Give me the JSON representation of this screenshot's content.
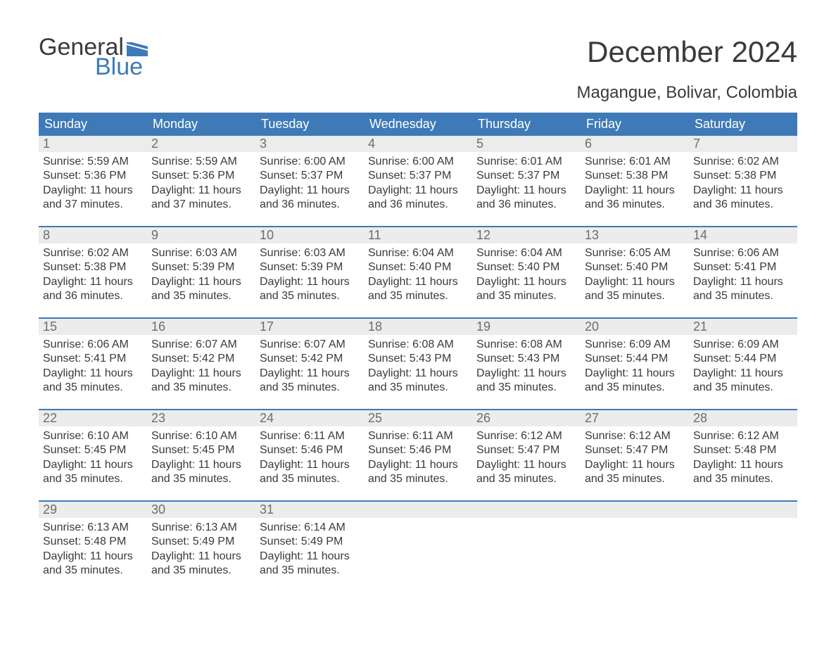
{
  "logo": {
    "line1": "General",
    "line2": "Blue",
    "logo_color": "#3e7ab8"
  },
  "title": "December 2024",
  "subtitle": "Magangue, Bolivar, Colombia",
  "colors": {
    "header_bg": "#3e7ab8",
    "header_text": "#ffffff",
    "daynum_bg": "#ececec",
    "daynum_text": "#6d6d6d",
    "body_text": "#3a3a3a",
    "page_bg": "#ffffff",
    "week_border": "#3e7ab8"
  },
  "typography": {
    "title_fontsize": 42,
    "subtitle_fontsize": 24,
    "weekday_fontsize": 18,
    "daynum_fontsize": 18,
    "body_fontsize": 16,
    "logo_fontsize": 34
  },
  "weekdays": [
    "Sunday",
    "Monday",
    "Tuesday",
    "Wednesday",
    "Thursday",
    "Friday",
    "Saturday"
  ],
  "weeks": [
    [
      {
        "num": "1",
        "sunrise": "Sunrise: 5:59 AM",
        "sunset": "Sunset: 5:36 PM",
        "dl1": "Daylight: 11 hours",
        "dl2": "and 37 minutes."
      },
      {
        "num": "2",
        "sunrise": "Sunrise: 5:59 AM",
        "sunset": "Sunset: 5:36 PM",
        "dl1": "Daylight: 11 hours",
        "dl2": "and 37 minutes."
      },
      {
        "num": "3",
        "sunrise": "Sunrise: 6:00 AM",
        "sunset": "Sunset: 5:37 PM",
        "dl1": "Daylight: 11 hours",
        "dl2": "and 36 minutes."
      },
      {
        "num": "4",
        "sunrise": "Sunrise: 6:00 AM",
        "sunset": "Sunset: 5:37 PM",
        "dl1": "Daylight: 11 hours",
        "dl2": "and 36 minutes."
      },
      {
        "num": "5",
        "sunrise": "Sunrise: 6:01 AM",
        "sunset": "Sunset: 5:37 PM",
        "dl1": "Daylight: 11 hours",
        "dl2": "and 36 minutes."
      },
      {
        "num": "6",
        "sunrise": "Sunrise: 6:01 AM",
        "sunset": "Sunset: 5:38 PM",
        "dl1": "Daylight: 11 hours",
        "dl2": "and 36 minutes."
      },
      {
        "num": "7",
        "sunrise": "Sunrise: 6:02 AM",
        "sunset": "Sunset: 5:38 PM",
        "dl1": "Daylight: 11 hours",
        "dl2": "and 36 minutes."
      }
    ],
    [
      {
        "num": "8",
        "sunrise": "Sunrise: 6:02 AM",
        "sunset": "Sunset: 5:38 PM",
        "dl1": "Daylight: 11 hours",
        "dl2": "and 36 minutes."
      },
      {
        "num": "9",
        "sunrise": "Sunrise: 6:03 AM",
        "sunset": "Sunset: 5:39 PM",
        "dl1": "Daylight: 11 hours",
        "dl2": "and 35 minutes."
      },
      {
        "num": "10",
        "sunrise": "Sunrise: 6:03 AM",
        "sunset": "Sunset: 5:39 PM",
        "dl1": "Daylight: 11 hours",
        "dl2": "and 35 minutes."
      },
      {
        "num": "11",
        "sunrise": "Sunrise: 6:04 AM",
        "sunset": "Sunset: 5:40 PM",
        "dl1": "Daylight: 11 hours",
        "dl2": "and 35 minutes."
      },
      {
        "num": "12",
        "sunrise": "Sunrise: 6:04 AM",
        "sunset": "Sunset: 5:40 PM",
        "dl1": "Daylight: 11 hours",
        "dl2": "and 35 minutes."
      },
      {
        "num": "13",
        "sunrise": "Sunrise: 6:05 AM",
        "sunset": "Sunset: 5:40 PM",
        "dl1": "Daylight: 11 hours",
        "dl2": "and 35 minutes."
      },
      {
        "num": "14",
        "sunrise": "Sunrise: 6:06 AM",
        "sunset": "Sunset: 5:41 PM",
        "dl1": "Daylight: 11 hours",
        "dl2": "and 35 minutes."
      }
    ],
    [
      {
        "num": "15",
        "sunrise": "Sunrise: 6:06 AM",
        "sunset": "Sunset: 5:41 PM",
        "dl1": "Daylight: 11 hours",
        "dl2": "and 35 minutes."
      },
      {
        "num": "16",
        "sunrise": "Sunrise: 6:07 AM",
        "sunset": "Sunset: 5:42 PM",
        "dl1": "Daylight: 11 hours",
        "dl2": "and 35 minutes."
      },
      {
        "num": "17",
        "sunrise": "Sunrise: 6:07 AM",
        "sunset": "Sunset: 5:42 PM",
        "dl1": "Daylight: 11 hours",
        "dl2": "and 35 minutes."
      },
      {
        "num": "18",
        "sunrise": "Sunrise: 6:08 AM",
        "sunset": "Sunset: 5:43 PM",
        "dl1": "Daylight: 11 hours",
        "dl2": "and 35 minutes."
      },
      {
        "num": "19",
        "sunrise": "Sunrise: 6:08 AM",
        "sunset": "Sunset: 5:43 PM",
        "dl1": "Daylight: 11 hours",
        "dl2": "and 35 minutes."
      },
      {
        "num": "20",
        "sunrise": "Sunrise: 6:09 AM",
        "sunset": "Sunset: 5:44 PM",
        "dl1": "Daylight: 11 hours",
        "dl2": "and 35 minutes."
      },
      {
        "num": "21",
        "sunrise": "Sunrise: 6:09 AM",
        "sunset": "Sunset: 5:44 PM",
        "dl1": "Daylight: 11 hours",
        "dl2": "and 35 minutes."
      }
    ],
    [
      {
        "num": "22",
        "sunrise": "Sunrise: 6:10 AM",
        "sunset": "Sunset: 5:45 PM",
        "dl1": "Daylight: 11 hours",
        "dl2": "and 35 minutes."
      },
      {
        "num": "23",
        "sunrise": "Sunrise: 6:10 AM",
        "sunset": "Sunset: 5:45 PM",
        "dl1": "Daylight: 11 hours",
        "dl2": "and 35 minutes."
      },
      {
        "num": "24",
        "sunrise": "Sunrise: 6:11 AM",
        "sunset": "Sunset: 5:46 PM",
        "dl1": "Daylight: 11 hours",
        "dl2": "and 35 minutes."
      },
      {
        "num": "25",
        "sunrise": "Sunrise: 6:11 AM",
        "sunset": "Sunset: 5:46 PM",
        "dl1": "Daylight: 11 hours",
        "dl2": "and 35 minutes."
      },
      {
        "num": "26",
        "sunrise": "Sunrise: 6:12 AM",
        "sunset": "Sunset: 5:47 PM",
        "dl1": "Daylight: 11 hours",
        "dl2": "and 35 minutes."
      },
      {
        "num": "27",
        "sunrise": "Sunrise: 6:12 AM",
        "sunset": "Sunset: 5:47 PM",
        "dl1": "Daylight: 11 hours",
        "dl2": "and 35 minutes."
      },
      {
        "num": "28",
        "sunrise": "Sunrise: 6:12 AM",
        "sunset": "Sunset: 5:48 PM",
        "dl1": "Daylight: 11 hours",
        "dl2": "and 35 minutes."
      }
    ],
    [
      {
        "num": "29",
        "sunrise": "Sunrise: 6:13 AM",
        "sunset": "Sunset: 5:48 PM",
        "dl1": "Daylight: 11 hours",
        "dl2": "and 35 minutes."
      },
      {
        "num": "30",
        "sunrise": "Sunrise: 6:13 AM",
        "sunset": "Sunset: 5:49 PM",
        "dl1": "Daylight: 11 hours",
        "dl2": "and 35 minutes."
      },
      {
        "num": "31",
        "sunrise": "Sunrise: 6:14 AM",
        "sunset": "Sunset: 5:49 PM",
        "dl1": "Daylight: 11 hours",
        "dl2": "and 35 minutes."
      },
      null,
      null,
      null,
      null
    ]
  ]
}
